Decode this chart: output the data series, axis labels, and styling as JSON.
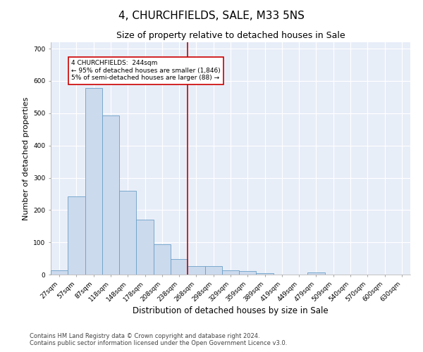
{
  "title": "4, CHURCHFIELDS, SALE, M33 5NS",
  "subtitle": "Size of property relative to detached houses in Sale",
  "xlabel": "Distribution of detached houses by size in Sale",
  "ylabel": "Number of detached properties",
  "bar_labels": [
    "27sqm",
    "57sqm",
    "87sqm",
    "118sqm",
    "148sqm",
    "178sqm",
    "208sqm",
    "238sqm",
    "268sqm",
    "298sqm",
    "329sqm",
    "359sqm",
    "389sqm",
    "419sqm",
    "449sqm",
    "479sqm",
    "509sqm",
    "540sqm",
    "570sqm",
    "600sqm",
    "630sqm"
  ],
  "bar_values": [
    13,
    243,
    578,
    493,
    259,
    170,
    93,
    48,
    27,
    27,
    13,
    10,
    5,
    0,
    0,
    7,
    0,
    0,
    0,
    0,
    0
  ],
  "bar_color": "#ccdaed",
  "bar_edge_color": "#6a9fc8",
  "vline_color": "#cc0000",
  "annotation_text": "4 CHURCHFIELDS:  244sqm\n← 95% of detached houses are smaller (1,846)\n5% of semi-detached houses are larger (88) →",
  "annotation_box_color": "white",
  "annotation_box_edge_color": "#cc0000",
  "ylim": [
    0,
    720
  ],
  "yticks": [
    0,
    100,
    200,
    300,
    400,
    500,
    600,
    700
  ],
  "bg_color": "#e8eef8",
  "grid_color": "white",
  "footer": "Contains HM Land Registry data © Crown copyright and database right 2024.\nContains public sector information licensed under the Open Government Licence v3.0.",
  "title_fontsize": 11,
  "subtitle_fontsize": 9,
  "tick_fontsize": 6.5,
  "ylabel_fontsize": 8,
  "xlabel_fontsize": 8.5,
  "footer_fontsize": 6.0
}
